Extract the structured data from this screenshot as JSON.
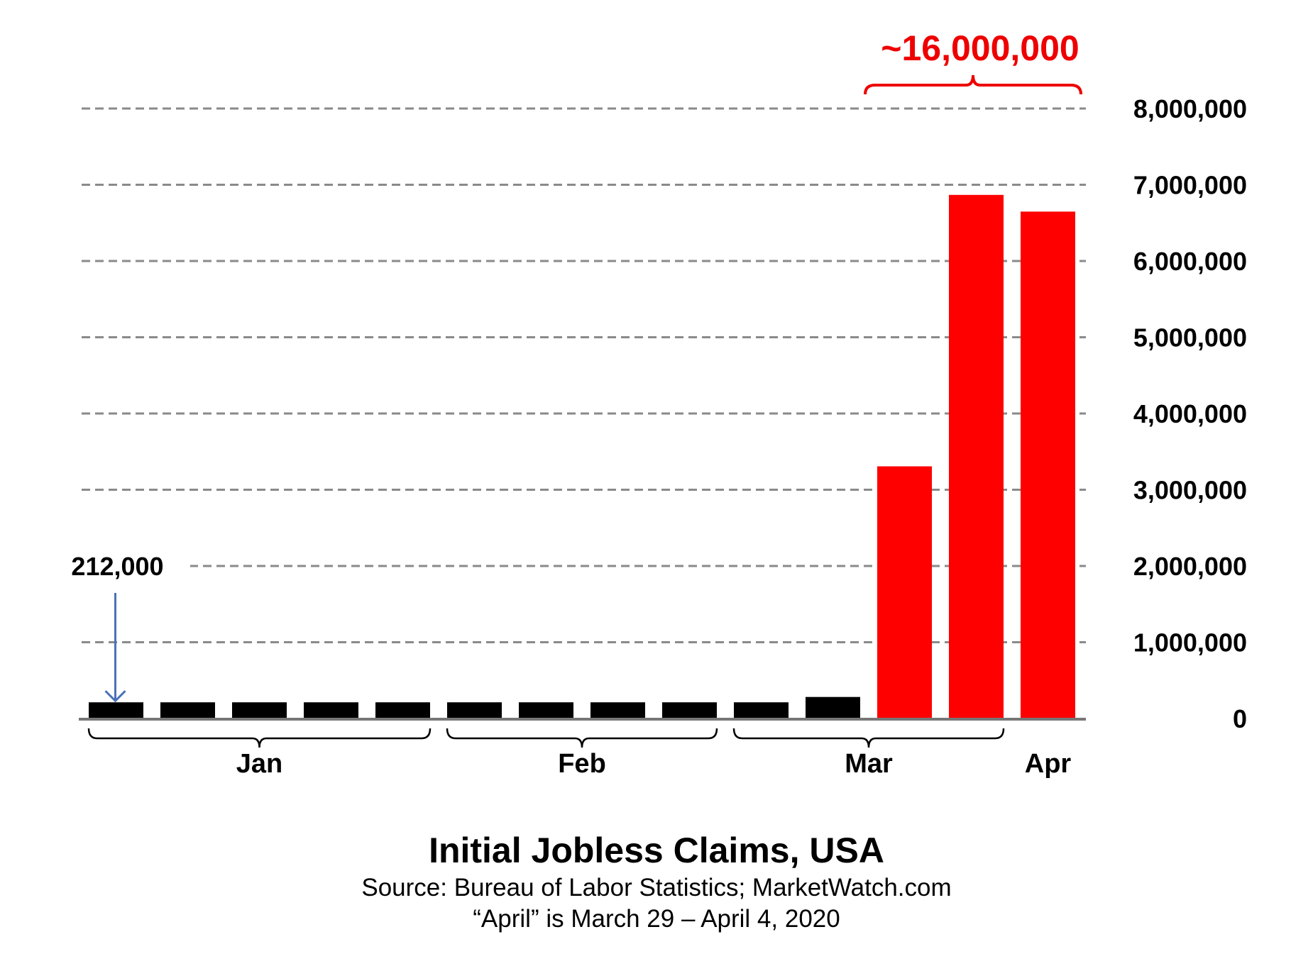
{
  "chart_data": {
    "type": "bar",
    "title": "Initial Jobless Claims, USA",
    "subtitle": "Source: Bureau of Labor Statistics; MarketWatch.com",
    "note": "“April” is March 29 – April 4, 2020",
    "values": [
      212000,
      212000,
      212000,
      212000,
      212000,
      212000,
      212000,
      212000,
      212000,
      212000,
      282000,
      3307000,
      6867000,
      6648000
    ],
    "bar_colors": [
      "#000000",
      "#000000",
      "#000000",
      "#000000",
      "#000000",
      "#000000",
      "#000000",
      "#000000",
      "#000000",
      "#000000",
      "#000000",
      "#ff0000",
      "#ff0000",
      "#ff0000"
    ],
    "month_groups": [
      {
        "label": "Jan",
        "first": 0,
        "last": 4
      },
      {
        "label": "Feb",
        "first": 5,
        "last": 8
      },
      {
        "label": "Mar",
        "first": 9,
        "last": 12
      },
      {
        "label": "Apr",
        "first": 13,
        "last": 13
      }
    ],
    "ylim": [
      0,
      8000000
    ],
    "y_ticks": [
      0,
      1000000,
      2000000,
      3000000,
      4000000,
      5000000,
      6000000,
      7000000,
      8000000
    ],
    "y_tick_labels": [
      "0",
      "1,000,000",
      "2,000,000",
      "3,000,000",
      "4,000,000",
      "5,000,000",
      "6,000,000",
      "7,000,000",
      "8,000,000"
    ],
    "y_axis_side": "right",
    "grid": "dashed",
    "annotations": {
      "first_bar_label": "212,000",
      "total_label": "~16,000,000",
      "total_first_bar": 11,
      "total_last_bar": 13
    },
    "colors": {
      "arrow": "#4a72b8",
      "highlight": "#ff0000"
    }
  }
}
